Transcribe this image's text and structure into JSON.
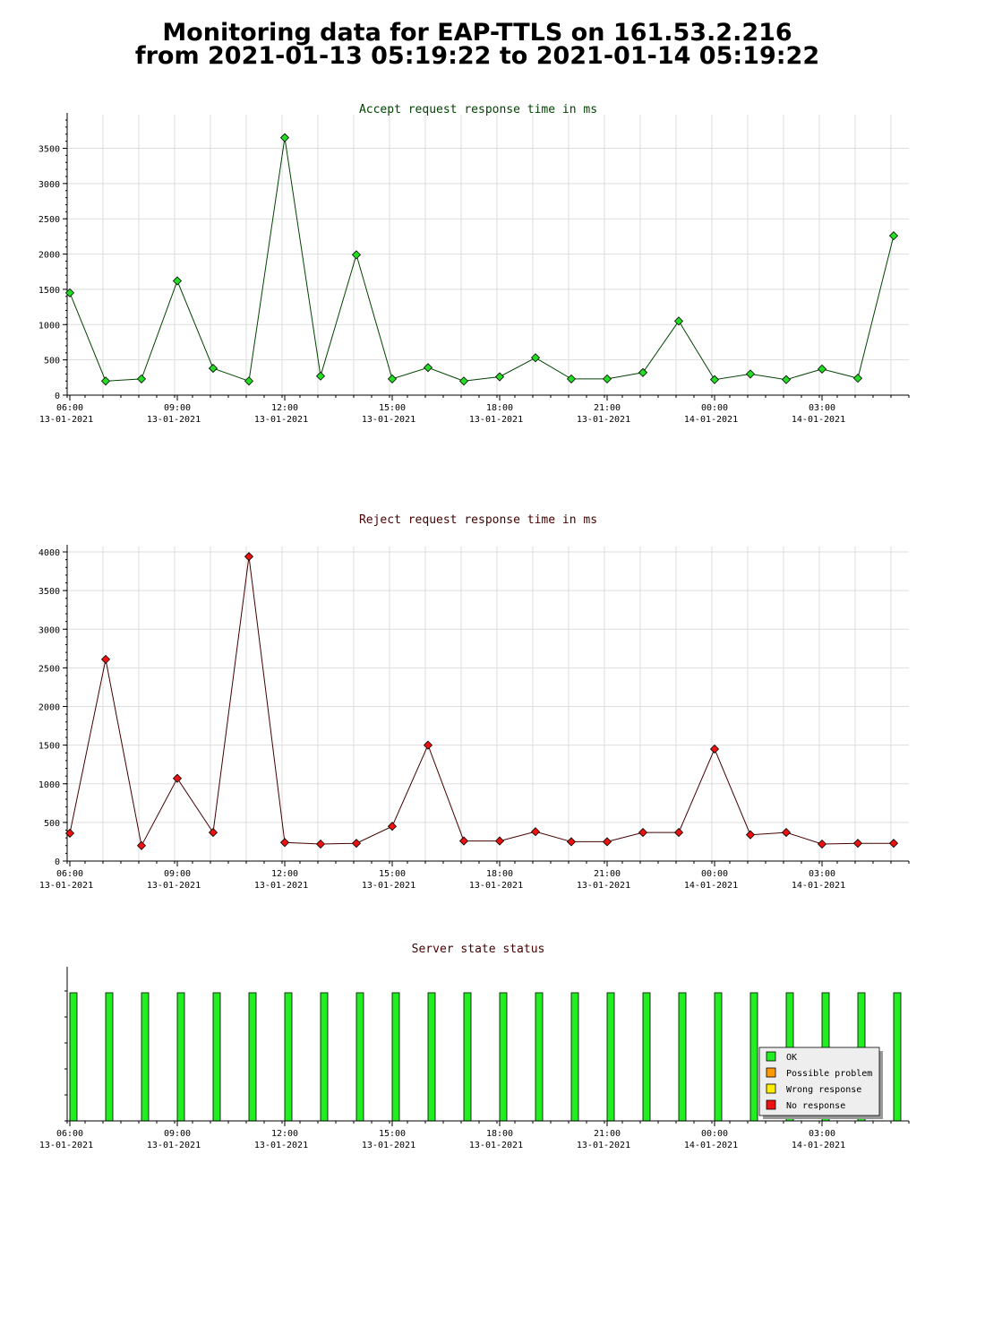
{
  "page": {
    "title_line1": "Monitoring data for EAP-TTLS on 161.53.2.216",
    "title_line2": "from 2021-01-13 05:19:22 to 2021-01-14 05:19:22"
  },
  "x_axis_ticks": [
    {
      "time": "06:00",
      "date": "13-01-2021"
    },
    {
      "time": "09:00",
      "date": "13-01-2021"
    },
    {
      "time": "12:00",
      "date": "13-01-2021"
    },
    {
      "time": "15:00",
      "date": "13-01-2021"
    },
    {
      "time": "18:00",
      "date": "13-01-2021"
    },
    {
      "time": "21:00",
      "date": "13-01-2021"
    },
    {
      "time": "00:00",
      "date": "14-01-2021"
    },
    {
      "time": "03:00",
      "date": "14-01-2021"
    }
  ],
  "colors": {
    "accept_line": "#004400",
    "accept_marker": "#22dd22",
    "reject_line": "#440000",
    "reject_marker": "#ee1111",
    "accept_title": "#004400",
    "reject_title": "#440000",
    "status_title": "#440000",
    "grid": "#dddddd"
  },
  "chart_data": [
    {
      "type": "line",
      "title": "Accept request response time in ms",
      "x": [
        "2021-01-13 06:00",
        "2021-01-13 07:00",
        "2021-01-13 08:00",
        "2021-01-13 09:00",
        "2021-01-13 10:00",
        "2021-01-13 11:00",
        "2021-01-13 12:00",
        "2021-01-13 13:00",
        "2021-01-13 14:00",
        "2021-01-13 15:00",
        "2021-01-13 16:00",
        "2021-01-13 17:00",
        "2021-01-13 18:00",
        "2021-01-13 19:00",
        "2021-01-13 20:00",
        "2021-01-13 21:00",
        "2021-01-13 22:00",
        "2021-01-13 23:00",
        "2021-01-14 00:00",
        "2021-01-14 01:00",
        "2021-01-14 02:00",
        "2021-01-14 03:00",
        "2021-01-14 04:00",
        "2021-01-14 05:00"
      ],
      "values": [
        1450,
        200,
        230,
        1620,
        380,
        200,
        3650,
        270,
        1990,
        230,
        390,
        200,
        260,
        530,
        230,
        230,
        320,
        1050,
        220,
        300,
        220,
        370,
        240,
        2260
      ],
      "y_ticks": [
        0,
        500,
        1000,
        1500,
        2000,
        2500,
        3000,
        3500
      ],
      "ylim": [
        0,
        3900
      ],
      "grid": true
    },
    {
      "type": "line",
      "title": "Reject request response time in ms",
      "x": [
        "2021-01-13 06:00",
        "2021-01-13 07:00",
        "2021-01-13 08:00",
        "2021-01-13 09:00",
        "2021-01-13 10:00",
        "2021-01-13 11:00",
        "2021-01-13 12:00",
        "2021-01-13 13:00",
        "2021-01-13 14:00",
        "2021-01-13 15:00",
        "2021-01-13 16:00",
        "2021-01-13 17:00",
        "2021-01-13 18:00",
        "2021-01-13 19:00",
        "2021-01-13 20:00",
        "2021-01-13 21:00",
        "2021-01-13 22:00",
        "2021-01-13 23:00",
        "2021-01-14 00:00",
        "2021-01-14 01:00",
        "2021-01-14 02:00",
        "2021-01-14 03:00",
        "2021-01-14 04:00",
        "2021-01-14 05:00"
      ],
      "values": [
        360,
        2610,
        200,
        1070,
        370,
        3940,
        240,
        220,
        230,
        450,
        1500,
        260,
        260,
        380,
        250,
        250,
        370,
        370,
        1450,
        340,
        370,
        220,
        230,
        230
      ],
      "y_ticks": [
        0,
        500,
        1000,
        1500,
        2000,
        2500,
        3000,
        3500,
        4000
      ],
      "ylim": [
        0,
        4000
      ],
      "grid": true
    },
    {
      "type": "bar",
      "title": "Server state status",
      "x": [
        "2021-01-13 06:00",
        "2021-01-13 07:00",
        "2021-01-13 08:00",
        "2021-01-13 09:00",
        "2021-01-13 10:00",
        "2021-01-13 11:00",
        "2021-01-13 12:00",
        "2021-01-13 13:00",
        "2021-01-13 14:00",
        "2021-01-13 15:00",
        "2021-01-13 16:00",
        "2021-01-13 17:00",
        "2021-01-13 18:00",
        "2021-01-13 19:00",
        "2021-01-13 20:00",
        "2021-01-13 21:00",
        "2021-01-13 22:00",
        "2021-01-13 23:00",
        "2021-01-14 00:00",
        "2021-01-14 01:00",
        "2021-01-14 02:00",
        "2021-01-14 03:00",
        "2021-01-14 04:00",
        "2021-01-14 05:00"
      ],
      "states": [
        "OK",
        "OK",
        "OK",
        "OK",
        "OK",
        "OK",
        "OK",
        "OK",
        "OK",
        "OK",
        "OK",
        "OK",
        "OK",
        "OK",
        "OK",
        "OK",
        "OK",
        "OK",
        "OK",
        "OK",
        "OK",
        "OK",
        "OK",
        "OK"
      ],
      "legend_position": "bottom-right",
      "legend": [
        {
          "label": "OK",
          "color": "#22ee22"
        },
        {
          "label": "Possible problem",
          "color": "#ff9900"
        },
        {
          "label": "Wrong response",
          "color": "#ffee00"
        },
        {
          "label": "No response",
          "color": "#ee1111"
        }
      ]
    }
  ]
}
